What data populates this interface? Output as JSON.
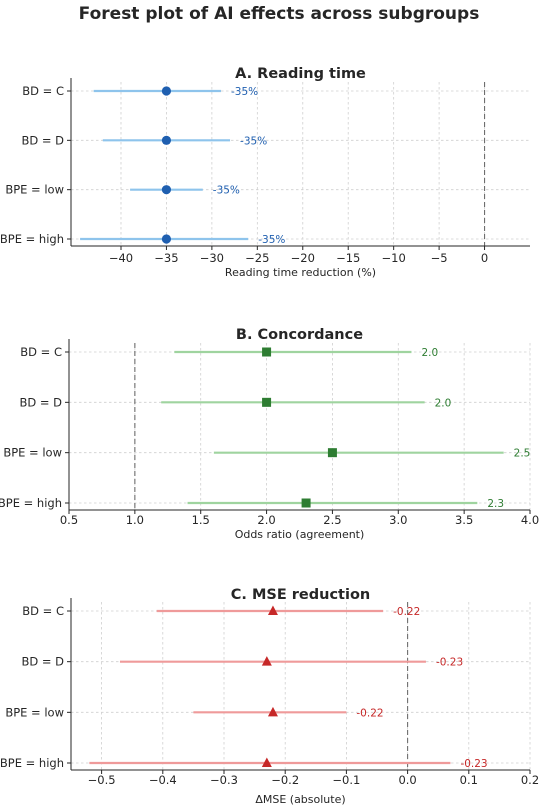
{
  "title": "Forest plot of AI effects across subgroups",
  "chart_data": [
    {
      "type": "scatter",
      "title": "A. Reading time",
      "xlabel": "Reading time reduction (%)",
      "xlim": [
        -45.5,
        5
      ],
      "xticks": [
        -40,
        -35,
        -30,
        -25,
        -20,
        -15,
        -10,
        -5,
        0
      ],
      "reference": 0,
      "marker": "circle",
      "marker_color": "#1f5fb0",
      "line_color": "#8ec4ec",
      "label_color": "#1f5fb0",
      "categories": [
        "BD = C",
        "BD = D",
        "BPE = low",
        "BPE = high"
      ],
      "estimates": [
        -35,
        -35,
        -35,
        -35
      ],
      "ci_low": [
        -43,
        -42,
        -39,
        -44.5
      ],
      "ci_high": [
        -29,
        -28,
        -31,
        -26
      ],
      "labels": [
        "-35%",
        "-35%",
        "-35%",
        "-35%"
      ]
    },
    {
      "type": "scatter",
      "title": "B. Concordance",
      "xlabel": "Odds ratio (agreement)",
      "xlim": [
        0.5,
        4.0
      ],
      "xticks": [
        0.5,
        1.0,
        1.5,
        2.0,
        2.5,
        3.0,
        3.5,
        4.0
      ],
      "reference": 1.0,
      "marker": "square",
      "marker_color": "#2e7d32",
      "line_color": "#9fd49f",
      "label_color": "#2e7d32",
      "categories": [
        "BD = C",
        "BD = D",
        "BPE = low",
        "BPE = high"
      ],
      "estimates": [
        2.0,
        2.0,
        2.5,
        2.3
      ],
      "ci_low": [
        1.3,
        1.2,
        1.6,
        1.4
      ],
      "ci_high": [
        3.1,
        3.2,
        3.8,
        3.6
      ],
      "labels": [
        "2.0",
        "2.0",
        "2.5",
        "2.3"
      ]
    },
    {
      "type": "scatter",
      "title": "C. MSE reduction",
      "xlabel": "ΔMSE (absolute)",
      "xlim": [
        -0.55,
        0.2
      ],
      "xticks": [
        -0.5,
        -0.4,
        -0.3,
        -0.2,
        -0.1,
        0.0,
        0.1,
        0.2
      ],
      "reference": 0.0,
      "marker": "triangle",
      "marker_color": "#c62828",
      "line_color": "#ef9a9a",
      "label_color": "#c62828",
      "categories": [
        "BD = C",
        "BD = D",
        "BPE = low",
        "BPE = high"
      ],
      "estimates": [
        -0.22,
        -0.23,
        -0.22,
        -0.23
      ],
      "ci_low": [
        -0.41,
        -0.47,
        -0.35,
        -0.52
      ],
      "ci_high": [
        -0.04,
        0.03,
        -0.1,
        0.07
      ],
      "labels": [
        "-0.22",
        "-0.23",
        "-0.22",
        "-0.23"
      ]
    }
  ]
}
